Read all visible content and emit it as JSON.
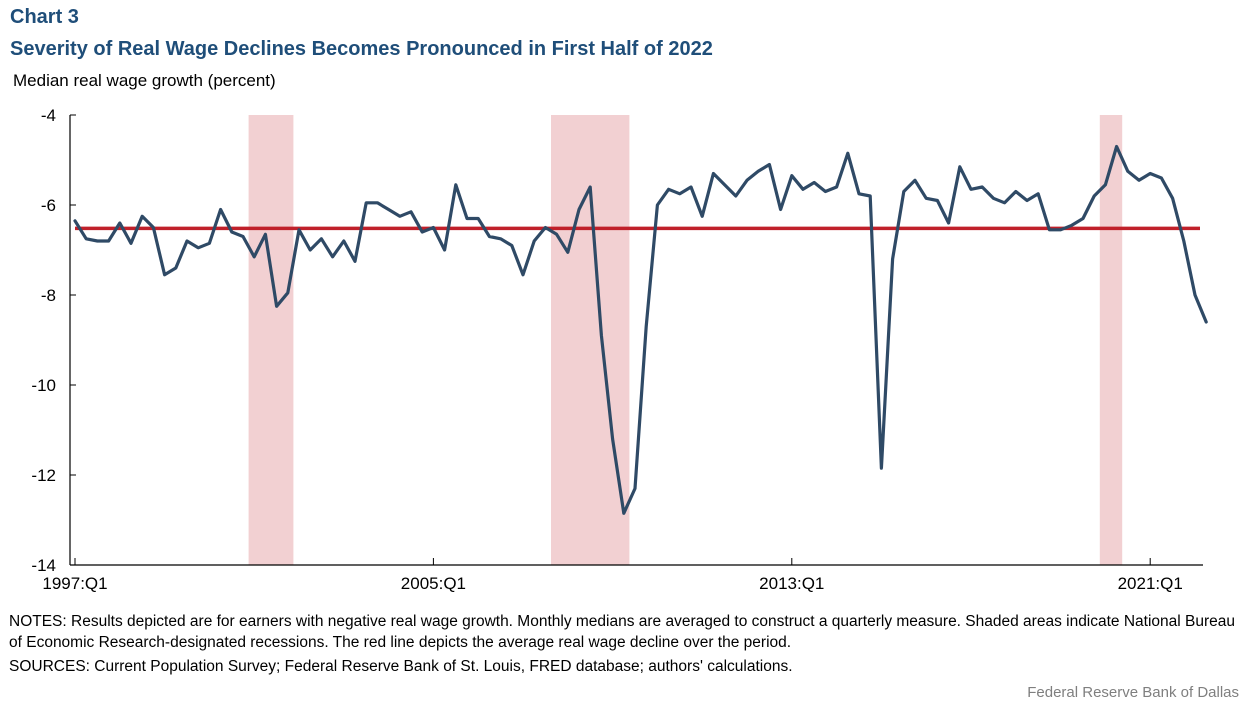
{
  "chart_label": "Chart 3",
  "title": "Severity of Real Wage Declines Becomes Pronounced in First Half of 2022",
  "notes": "NOTES: Results depicted are for earners with negative real wage growth. Monthly medians are averaged to construct a quarterly measure. Shaded areas indicate National Bureau of Economic Research-designated recessions. The red line depicts the average real wage decline over the period.",
  "sources": "SOURCES: Current Population Survey; Federal Reserve Bank of St. Louis, FRED database; authors' calculations.",
  "credit": "Federal Reserve  Bank of Dallas",
  "colors": {
    "series": "#2f4a66",
    "average": "#c0202a",
    "recession": "#f2d0d2",
    "axis": "#000000"
  },
  "chart_data": {
    "type": "line",
    "ylabel": "Median real wage growth (percent)",
    "ylim": [
      -14,
      -4
    ],
    "yticks": [
      -4,
      -6,
      -8,
      -10,
      -12,
      -14
    ],
    "xticks": [
      {
        "label": "1997:Q1",
        "index": 0
      },
      {
        "label": "2005:Q1",
        "index": 32
      },
      {
        "label": "2013:Q1",
        "index": 64
      },
      {
        "label": "2021:Q1",
        "index": 96
      }
    ],
    "x_start": "1997:Q1",
    "x_end": "2022:Q2",
    "average": -6.52,
    "recessions": [
      {
        "start": "2001:Q1",
        "end": "2001:Q4"
      },
      {
        "start": "2007:Q4",
        "end": "2009:Q2"
      },
      {
        "start": "2020:Q1",
        "end": "2020:Q2"
      }
    ],
    "series": [
      {
        "values": [
          -6.35,
          -6.75,
          -6.8,
          -6.8,
          -6.4,
          -6.85,
          -6.25,
          -6.5,
          -7.55,
          -7.4,
          -6.8,
          -6.95,
          -6.85,
          -6.1,
          -6.6,
          -6.7,
          -7.15,
          -6.65,
          -8.25,
          -7.95,
          -6.55,
          -7.0,
          -6.75,
          -7.15,
          -6.8,
          -7.25,
          -5.95,
          -5.95,
          -6.1,
          -6.25,
          -6.15,
          -6.6,
          -6.5,
          -7.0,
          -5.55,
          -6.3,
          -6.3,
          -6.7,
          -6.75,
          -6.9,
          -7.55,
          -6.8,
          -6.5,
          -6.65,
          -7.05,
          -6.1,
          -5.6,
          -8.9,
          -11.2,
          -12.85,
          -12.3,
          -8.7,
          -6.0,
          -5.65,
          -5.75,
          -5.6,
          -6.25,
          -5.3,
          -5.55,
          -5.8,
          -5.45,
          -5.25,
          -5.1,
          -6.1,
          -5.35,
          -5.65,
          -5.5,
          -5.7,
          -5.6,
          -4.85,
          -5.75,
          -5.8,
          -11.85,
          -7.2,
          -5.7,
          -5.45,
          -5.85,
          -5.9,
          -6.4,
          -5.15,
          -5.65,
          -5.6,
          -5.85,
          -5.95,
          -5.7,
          -5.9,
          -5.75,
          -6.55,
          -6.55,
          -6.45,
          -6.3,
          -5.8,
          -5.55,
          -4.7,
          -5.25,
          -5.45,
          -5.3,
          -5.4,
          -5.85,
          -6.8,
          -8.0,
          -8.6
        ]
      }
    ]
  }
}
